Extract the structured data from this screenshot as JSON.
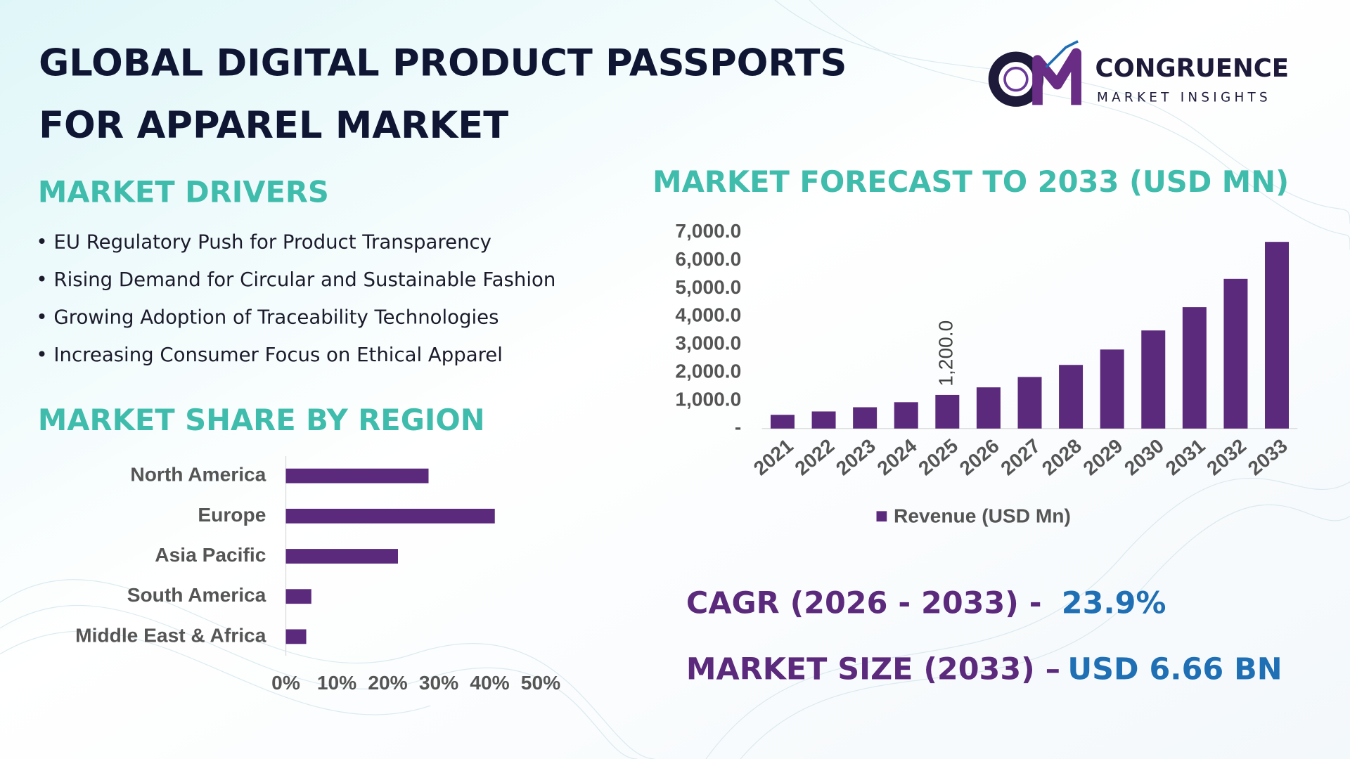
{
  "title": {
    "line1": "GLOBAL DIGITAL PRODUCT PASSPORTS",
    "line2": "FOR APPAREL MARKET"
  },
  "logo": {
    "name": "CONGRUENCE",
    "tagline": "MARKET INSIGHTS"
  },
  "drivers": {
    "heading": "MARKET DRIVERS",
    "items": [
      "• EU Regulatory Push for Product Transparency",
      "• Rising Demand for Circular and Sustainable Fashion",
      "• Growing Adoption of Traceability Technologies",
      "• Increasing Consumer Focus on Ethical Apparel"
    ]
  },
  "chart_data": [
    {
      "type": "bar",
      "title": "MARKET FORECAST TO 2033 (USD MN)",
      "categories": [
        "2021",
        "2022",
        "2023",
        "2024",
        "2025",
        "2026",
        "2027",
        "2028",
        "2029",
        "2030",
        "2031",
        "2032",
        "2033"
      ],
      "series": [
        {
          "name": "Revenue (USD Mn)",
          "color": "#5c2a7c",
          "values": [
            490,
            610,
            760,
            940,
            1200,
            1470,
            1840,
            2270,
            2820,
            3500,
            4330,
            5340,
            6660
          ],
          "value_labels": [
            null,
            null,
            null,
            null,
            "1,200.0",
            null,
            null,
            null,
            null,
            null,
            null,
            null,
            null
          ]
        }
      ],
      "ylim": [
        0,
        7000
      ],
      "yticks": [
        {
          "value": 0,
          "label": "-"
        },
        {
          "value": 1000,
          "label": "1,000.0"
        },
        {
          "value": 2000,
          "label": "2,000.0"
        },
        {
          "value": 3000,
          "label": "3,000.0"
        },
        {
          "value": 4000,
          "label": "4,000.0"
        },
        {
          "value": 5000,
          "label": "5,000.0"
        },
        {
          "value": 6000,
          "label": "6,000.0"
        },
        {
          "value": 7000,
          "label": "7,000.0"
        }
      ],
      "grid": false,
      "legend": "bottom"
    },
    {
      "type": "hbar",
      "title": "MARKET SHARE BY REGION",
      "categories": [
        "North America",
        "Europe",
        "Asia Pacific",
        "South America",
        "Middle East & Africa"
      ],
      "values": [
        28,
        41,
        22,
        5,
        4
      ],
      "color": "#5c2a7c",
      "xlim": [
        0,
        50
      ],
      "xticks": [
        {
          "value": 0,
          "label": "0%"
        },
        {
          "value": 10,
          "label": "10%"
        },
        {
          "value": 20,
          "label": "20%"
        },
        {
          "value": 30,
          "label": "30%"
        },
        {
          "value": 40,
          "label": "40%"
        },
        {
          "value": 50,
          "label": "50%"
        }
      ],
      "grid": false
    }
  ],
  "stats": [
    {
      "label": "CAGR (2026 - 2033) -",
      "value": "23.9%"
    },
    {
      "label": "MARKET SIZE (2033) –",
      "value": "USD 6.66 BN"
    }
  ]
}
